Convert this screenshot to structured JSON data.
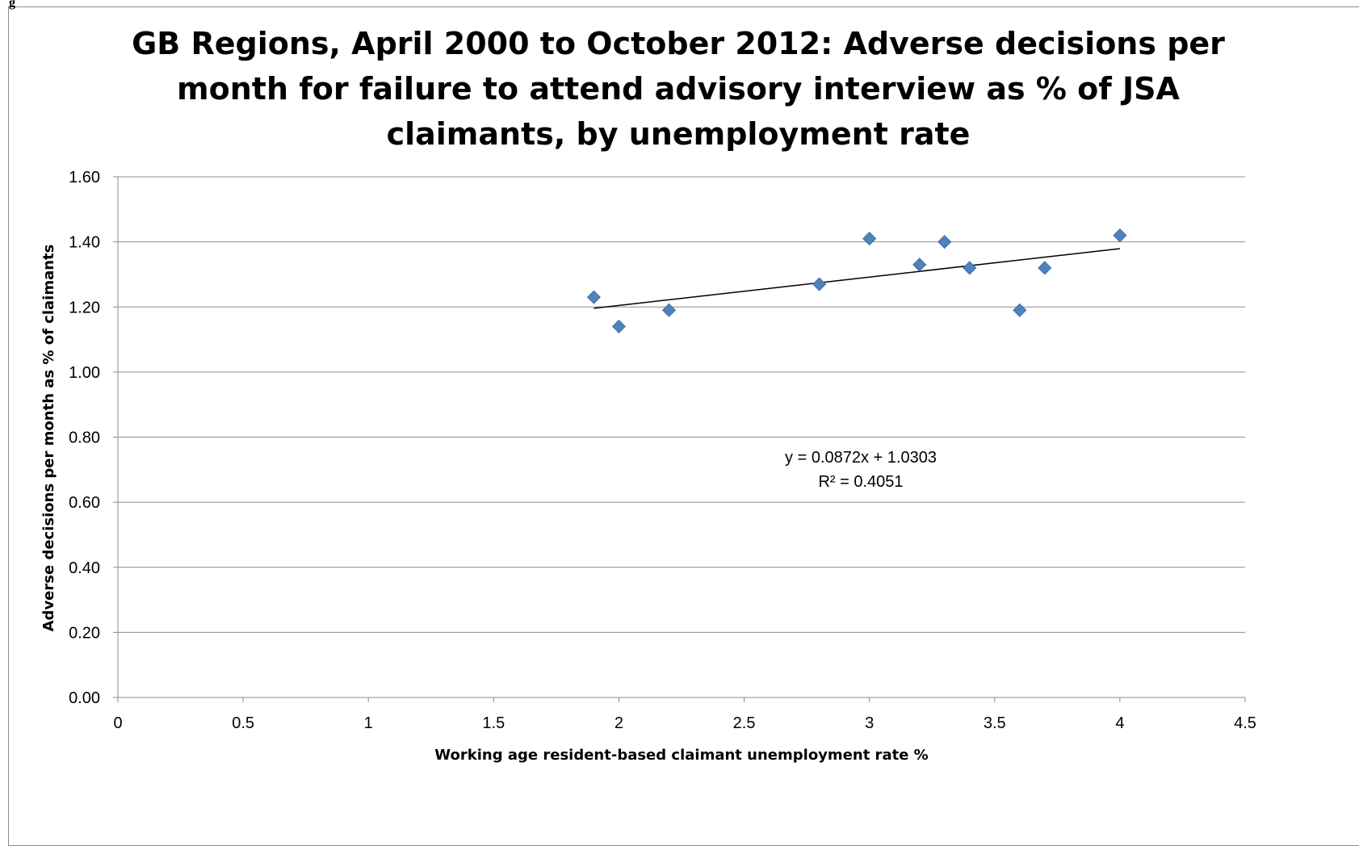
{
  "page_header_fragment": "g",
  "chart_data": {
    "type": "scatter",
    "title_lines": [
      "GB Regions, April 2000 to October 2012:  Adverse decisions per",
      "month for failure to attend advisory interview as % of JSA",
      "claimants, by unemployment rate"
    ],
    "xlabel": "Working age resident-based claimant unemployment rate %",
    "ylabel": "Adverse decisions per month as % of claimants",
    "xlim": [
      0,
      4.5
    ],
    "ylim": [
      0,
      1.6
    ],
    "x_ticks": [
      "0",
      "0.5",
      "1",
      "1.5",
      "2",
      "2.5",
      "3",
      "3.5",
      "4",
      "4.5"
    ],
    "y_ticks": [
      "0.00",
      "0.20",
      "0.40",
      "0.60",
      "0.80",
      "1.00",
      "1.20",
      "1.40",
      "1.60"
    ],
    "grid": "horizontal",
    "marker": "diamond",
    "marker_color": "#4f81bd",
    "points": [
      {
        "x": 1.9,
        "y": 1.23
      },
      {
        "x": 2.0,
        "y": 1.14
      },
      {
        "x": 2.2,
        "y": 1.19
      },
      {
        "x": 2.8,
        "y": 1.27
      },
      {
        "x": 3.0,
        "y": 1.41
      },
      {
        "x": 3.2,
        "y": 1.33
      },
      {
        "x": 3.3,
        "y": 1.4
      },
      {
        "x": 3.4,
        "y": 1.32
      },
      {
        "x": 3.6,
        "y": 1.19
      },
      {
        "x": 3.7,
        "y": 1.32
      },
      {
        "x": 4.0,
        "y": 1.42
      }
    ],
    "trendline": {
      "type": "linear",
      "slope": 0.0872,
      "intercept": 1.0303,
      "x_range": [
        1.9,
        4.0
      ],
      "equation_text": "y = 0.0872x + 1.0303",
      "r2_text": "R² = 0.4051"
    }
  }
}
